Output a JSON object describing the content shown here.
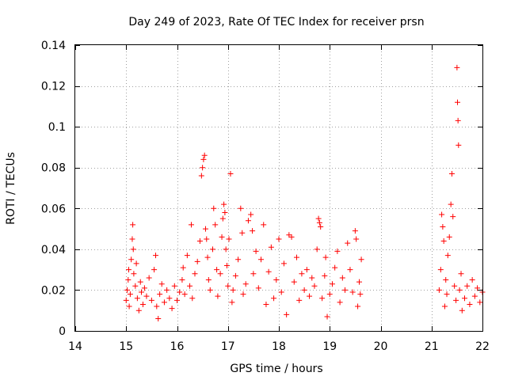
{
  "chart_data": {
    "type": "scatter",
    "title": "Day 249 of 2023, Rate Of TEC Index for receiver prsn",
    "xlabel": "GPS time / hours",
    "ylabel": "ROTI / TECUs",
    "xlim": [
      14,
      22
    ],
    "ylim": [
      0,
      0.14
    ],
    "xticks": [
      14,
      15,
      16,
      17,
      18,
      19,
      20,
      21,
      22
    ],
    "yticks": [
      0,
      0.02,
      0.04,
      0.06,
      0.08,
      0.1,
      0.12,
      0.14
    ],
    "xtick_labels": [
      "14",
      "15",
      "16",
      "17",
      "18",
      "19",
      "20",
      "21",
      "22"
    ],
    "ytick_labels": [
      "0",
      "0.02",
      "0.04",
      "0.06",
      "0.08",
      "0.1",
      "0.12",
      "0.14"
    ],
    "grid": true,
    "marker": "+",
    "color": "#ff0000",
    "series": [
      {
        "name": "ROTI",
        "points": [
          [
            15.0,
            0.015
          ],
          [
            15.02,
            0.02
          ],
          [
            15.04,
            0.025
          ],
          [
            15.05,
            0.03
          ],
          [
            15.06,
            0.012
          ],
          [
            15.08,
            0.018
          ],
          [
            15.1,
            0.035
          ],
          [
            15.12,
            0.045
          ],
          [
            15.13,
            0.052
          ],
          [
            15.14,
            0.04
          ],
          [
            15.15,
            0.028
          ],
          [
            15.18,
            0.022
          ],
          [
            15.2,
            0.033
          ],
          [
            15.22,
            0.016
          ],
          [
            15.25,
            0.01
          ],
          [
            15.28,
            0.024
          ],
          [
            15.3,
            0.019
          ],
          [
            15.33,
            0.013
          ],
          [
            15.36,
            0.021
          ],
          [
            15.4,
            0.017
          ],
          [
            15.45,
            0.026
          ],
          [
            15.5,
            0.015
          ],
          [
            15.55,
            0.03
          ],
          [
            15.58,
            0.037
          ],
          [
            15.6,
            0.012
          ],
          [
            15.63,
            0.006
          ],
          [
            15.66,
            0.018
          ],
          [
            15.7,
            0.023
          ],
          [
            15.75,
            0.014
          ],
          [
            15.8,
            0.02
          ],
          [
            15.85,
            0.016
          ],
          [
            15.9,
            0.011
          ],
          [
            15.95,
            0.022
          ],
          [
            16.0,
            0.015
          ],
          [
            16.05,
            0.019
          ],
          [
            16.1,
            0.025
          ],
          [
            16.12,
            0.031
          ],
          [
            16.15,
            0.018
          ],
          [
            16.2,
            0.037
          ],
          [
            16.25,
            0.022
          ],
          [
            16.28,
            0.052
          ],
          [
            16.3,
            0.016
          ],
          [
            16.35,
            0.028
          ],
          [
            16.4,
            0.034
          ],
          [
            16.45,
            0.044
          ],
          [
            16.48,
            0.076
          ],
          [
            16.5,
            0.08
          ],
          [
            16.52,
            0.084
          ],
          [
            16.54,
            0.086
          ],
          [
            16.56,
            0.05
          ],
          [
            16.58,
            0.045
          ],
          [
            16.6,
            0.036
          ],
          [
            16.62,
            0.025
          ],
          [
            16.65,
            0.02
          ],
          [
            16.7,
            0.04
          ],
          [
            16.72,
            0.06
          ],
          [
            16.75,
            0.052
          ],
          [
            16.78,
            0.03
          ],
          [
            16.8,
            0.017
          ],
          [
            16.85,
            0.028
          ],
          [
            16.88,
            0.046
          ],
          [
            16.9,
            0.055
          ],
          [
            16.92,
            0.062
          ],
          [
            16.94,
            0.058
          ],
          [
            16.96,
            0.04
          ],
          [
            16.98,
            0.032
          ],
          [
            17.0,
            0.022
          ],
          [
            17.02,
            0.045
          ],
          [
            17.05,
            0.077
          ],
          [
            17.08,
            0.014
          ],
          [
            17.1,
            0.02
          ],
          [
            17.15,
            0.027
          ],
          [
            17.2,
            0.035
          ],
          [
            17.25,
            0.06
          ],
          [
            17.28,
            0.048
          ],
          [
            17.3,
            0.018
          ],
          [
            17.35,
            0.023
          ],
          [
            17.4,
            0.054
          ],
          [
            17.45,
            0.057
          ],
          [
            17.48,
            0.049
          ],
          [
            17.5,
            0.028
          ],
          [
            17.55,
            0.039
          ],
          [
            17.6,
            0.021
          ],
          [
            17.65,
            0.035
          ],
          [
            17.7,
            0.052
          ],
          [
            17.75,
            0.013
          ],
          [
            17.8,
            0.029
          ],
          [
            17.85,
            0.041
          ],
          [
            17.9,
            0.016
          ],
          [
            17.95,
            0.025
          ],
          [
            18.0,
            0.045
          ],
          [
            18.05,
            0.019
          ],
          [
            18.1,
            0.033
          ],
          [
            18.15,
            0.008
          ],
          [
            18.2,
            0.047
          ],
          [
            18.25,
            0.046
          ],
          [
            18.3,
            0.024
          ],
          [
            18.35,
            0.036
          ],
          [
            18.4,
            0.015
          ],
          [
            18.45,
            0.028
          ],
          [
            18.5,
            0.02
          ],
          [
            18.55,
            0.03
          ],
          [
            18.6,
            0.017
          ],
          [
            18.65,
            0.026
          ],
          [
            18.7,
            0.022
          ],
          [
            18.75,
            0.04
          ],
          [
            18.78,
            0.055
          ],
          [
            18.8,
            0.053
          ],
          [
            18.82,
            0.051
          ],
          [
            18.85,
            0.016
          ],
          [
            18.9,
            0.027
          ],
          [
            18.92,
            0.036
          ],
          [
            18.95,
            0.007
          ],
          [
            19.0,
            0.018
          ],
          [
            19.05,
            0.023
          ],
          [
            19.1,
            0.031
          ],
          [
            19.15,
            0.039
          ],
          [
            19.2,
            0.014
          ],
          [
            19.25,
            0.026
          ],
          [
            19.3,
            0.02
          ],
          [
            19.35,
            0.043
          ],
          [
            19.4,
            0.03
          ],
          [
            19.45,
            0.019
          ],
          [
            19.5,
            0.049
          ],
          [
            19.52,
            0.045
          ],
          [
            19.55,
            0.012
          ],
          [
            19.58,
            0.024
          ],
          [
            19.6,
            0.018
          ],
          [
            19.62,
            0.035
          ],
          [
            21.15,
            0.02
          ],
          [
            21.18,
            0.03
          ],
          [
            21.2,
            0.057
          ],
          [
            21.22,
            0.051
          ],
          [
            21.24,
            0.044
          ],
          [
            21.26,
            0.012
          ],
          [
            21.28,
            0.025
          ],
          [
            21.3,
            0.018
          ],
          [
            21.32,
            0.037
          ],
          [
            21.35,
            0.046
          ],
          [
            21.38,
            0.062
          ],
          [
            21.4,
            0.077
          ],
          [
            21.42,
            0.056
          ],
          [
            21.45,
            0.022
          ],
          [
            21.48,
            0.015
          ],
          [
            21.5,
            0.129
          ],
          [
            21.51,
            0.112
          ],
          [
            21.52,
            0.103
          ],
          [
            21.53,
            0.091
          ],
          [
            21.55,
            0.02
          ],
          [
            21.58,
            0.028
          ],
          [
            21.6,
            0.01
          ],
          [
            21.65,
            0.016
          ],
          [
            21.7,
            0.022
          ],
          [
            21.75,
            0.013
          ],
          [
            21.8,
            0.025
          ],
          [
            21.85,
            0.017
          ],
          [
            21.9,
            0.021
          ],
          [
            21.95,
            0.014
          ],
          [
            22.0,
            0.019
          ]
        ]
      }
    ]
  }
}
